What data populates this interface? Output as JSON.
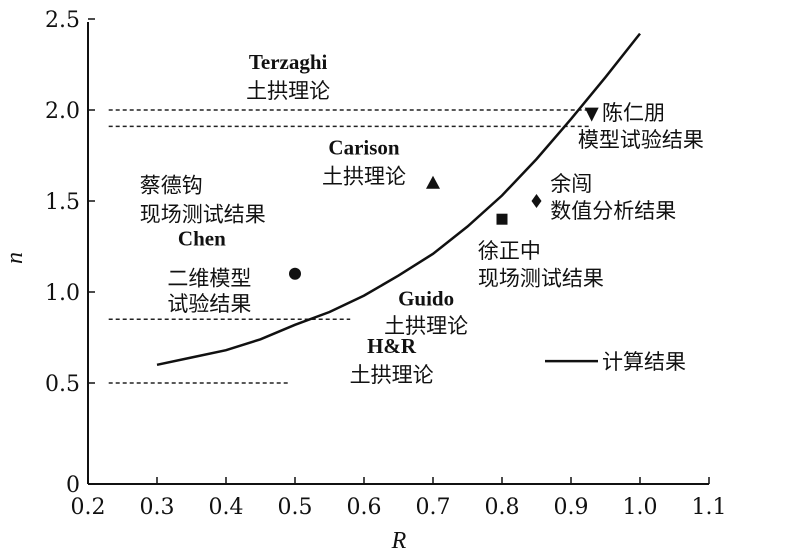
{
  "chart_data": {
    "type": "line",
    "xlabel": "R",
    "ylabel": "n",
    "xlim": [
      0.2,
      1.1
    ],
    "ylim": [
      0,
      2.5
    ],
    "xticks": [
      "0.2",
      "0.3",
      "0.4",
      "0.5",
      "0.6",
      "0.7",
      "0.8",
      "0.9",
      "1.0",
      "1.1"
    ],
    "yticks": [
      "0",
      "0.5",
      "1.0",
      "1.5",
      "2.0",
      "2.5"
    ],
    "series": [
      {
        "name": "计算结果",
        "style": "solid",
        "x": [
          0.3,
          0.35,
          0.4,
          0.45,
          0.5,
          0.55,
          0.6,
          0.65,
          0.7,
          0.75,
          0.8,
          0.85,
          0.9,
          0.95,
          1.0
        ],
        "y": [
          0.6,
          0.64,
          0.68,
          0.74,
          0.82,
          0.89,
          0.98,
          1.09,
          1.21,
          1.36,
          1.53,
          1.73,
          1.95,
          2.18,
          2.42
        ]
      }
    ],
    "reference_lines": [
      {
        "name": "Terzaghi",
        "y": 2.0,
        "x_from": 0.23,
        "x_to": 0.93
      },
      {
        "name": "Carison",
        "y": 1.91,
        "x_from": 0.23,
        "x_to": 0.93
      },
      {
        "name": "Guido",
        "y": 0.85,
        "x_from": 0.23,
        "x_to": 0.58
      },
      {
        "name": "H&R",
        "y": 0.5,
        "x_from": 0.23,
        "x_to": 0.49
      }
    ],
    "points": [
      {
        "name": "陈仁朋",
        "marker": "triangle-down",
        "x": 0.93,
        "y": 1.98
      },
      {
        "name": "Carison",
        "marker": "triangle-up",
        "x": 0.7,
        "y": 1.6
      },
      {
        "name": "余闯",
        "marker": "diamond",
        "x": 0.85,
        "y": 1.5
      },
      {
        "name": "徐正中",
        "marker": "square",
        "x": 0.8,
        "y": 1.4
      },
      {
        "name": "Chen",
        "marker": "circle",
        "x": 0.5,
        "y": 1.1
      }
    ],
    "annotations": [
      {
        "text": "Terzaghi",
        "x": 0.49,
        "y": 2.27,
        "anchor": "middle",
        "latin": true
      },
      {
        "text": "土拱理论",
        "x": 0.49,
        "y": 2.11,
        "anchor": "middle"
      },
      {
        "text": "Carison",
        "x": 0.6,
        "y": 1.8,
        "anchor": "middle",
        "latin": true
      },
      {
        "text": "土拱理论",
        "x": 0.6,
        "y": 1.64,
        "anchor": "middle"
      },
      {
        "text": "蔡德钩",
        "x": 0.275,
        "y": 1.59,
        "anchor": "start"
      },
      {
        "text": "现场测试结果",
        "x": 0.275,
        "y": 1.43,
        "anchor": "start"
      },
      {
        "text": "Chen",
        "x": 0.365,
        "y": 1.3,
        "anchor": "middle",
        "latin": true
      },
      {
        "text": "二维模型",
        "x": 0.315,
        "y": 1.08,
        "anchor": "start"
      },
      {
        "text": "试验结果",
        "x": 0.315,
        "y": 0.94,
        "anchor": "start"
      },
      {
        "text": "Guido",
        "x": 0.69,
        "y": 0.97,
        "anchor": "middle",
        "latin": true
      },
      {
        "text": "土拱理论",
        "x": 0.69,
        "y": 0.82,
        "anchor": "middle"
      },
      {
        "text": "H&R",
        "x": 0.64,
        "y": 0.71,
        "anchor": "middle",
        "latin": true
      },
      {
        "text": "土拱理论",
        "x": 0.64,
        "y": 0.55,
        "anchor": "middle"
      },
      {
        "text": "陈仁朋",
        "x": 0.945,
        "y": 1.99,
        "anchor": "start"
      },
      {
        "text": "模型试验结果",
        "x": 0.91,
        "y": 1.84,
        "anchor": "start"
      },
      {
        "text": "余闯",
        "x": 0.87,
        "y": 1.6,
        "anchor": "start"
      },
      {
        "text": "数值分析结果",
        "x": 0.87,
        "y": 1.45,
        "anchor": "start"
      },
      {
        "text": "徐正中",
        "x": 0.765,
        "y": 1.23,
        "anchor": "start"
      },
      {
        "text": "现场测试结果",
        "x": 0.765,
        "y": 1.08,
        "anchor": "start"
      }
    ],
    "legend": {
      "label": "计算结果",
      "placement": "lower-right"
    }
  }
}
